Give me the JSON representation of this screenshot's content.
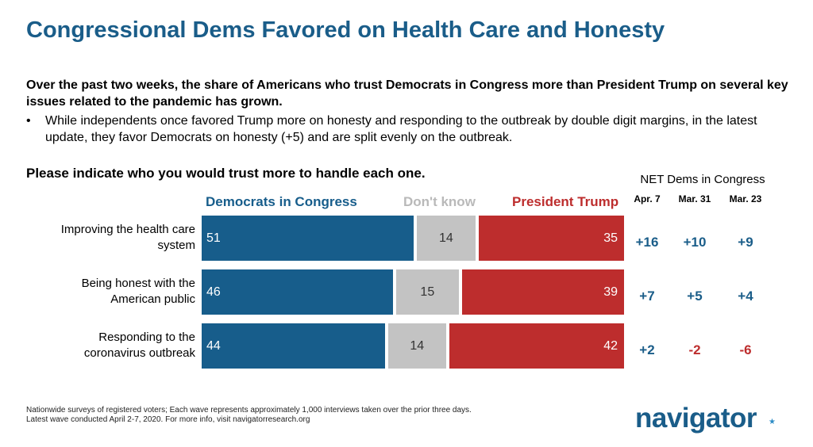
{
  "title": "Congressional Dems Favored on Health Care and Honesty",
  "intro": "Over the past two weeks, the share of Americans who trust Democrats in Congress more than President Trump on several key issues related to the pandemic has grown.",
  "bullet": {
    "marker": "•",
    "text": "While independents once favored Trump more on honesty and responding to the outbreak by double digit margins, in the latest update, they favor Democrats on honesty (+5) and are split evenly on the outbreak."
  },
  "question": "Please indicate who you would trust more to handle each one.",
  "net_header": {
    "title": "NET Dems in Congress",
    "waves": [
      "Apr. 7",
      "Mar. 31",
      "Mar. 23"
    ]
  },
  "colors": {
    "dem": "#175d8b",
    "dk": "#c3c3c3",
    "trump": "#bd2d2d",
    "title": "#1a5d89",
    "dk_legend": "#b9b9b9",
    "net_positive": "#1a5d89",
    "net_negative": "#bd2d2d"
  },
  "chart_data": {
    "type": "bar",
    "stacked": true,
    "orientation": "horizontal",
    "legend": [
      "Democrats in Congress",
      "Don't know",
      "President Trump"
    ],
    "categories": [
      [
        "Improving the health care",
        "system"
      ],
      [
        "Being honest with the",
        "American public"
      ],
      [
        "Responding to the",
        "coronavirus outbreak"
      ]
    ],
    "series": [
      {
        "name": "Democrats in Congress",
        "values": [
          51,
          46,
          44
        ]
      },
      {
        "name": "Don't know",
        "values": [
          14,
          15,
          14
        ]
      },
      {
        "name": "President Trump",
        "values": [
          35,
          39,
          42
        ]
      }
    ],
    "net": [
      [
        "+16",
        "+10",
        "+9"
      ],
      [
        "+7",
        "+5",
        "+4"
      ],
      [
        "+2",
        "-2",
        "-6"
      ]
    ]
  },
  "footnote": [
    "Nationwide surveys of registered voters; Each wave represents approximately 1,000 interviews taken over the prior three days.",
    "Latest wave conducted April 2-7, 2020. For more info, visit navigatorresearch.org"
  ],
  "logo": {
    "text": "navigator",
    "mark": "★"
  }
}
